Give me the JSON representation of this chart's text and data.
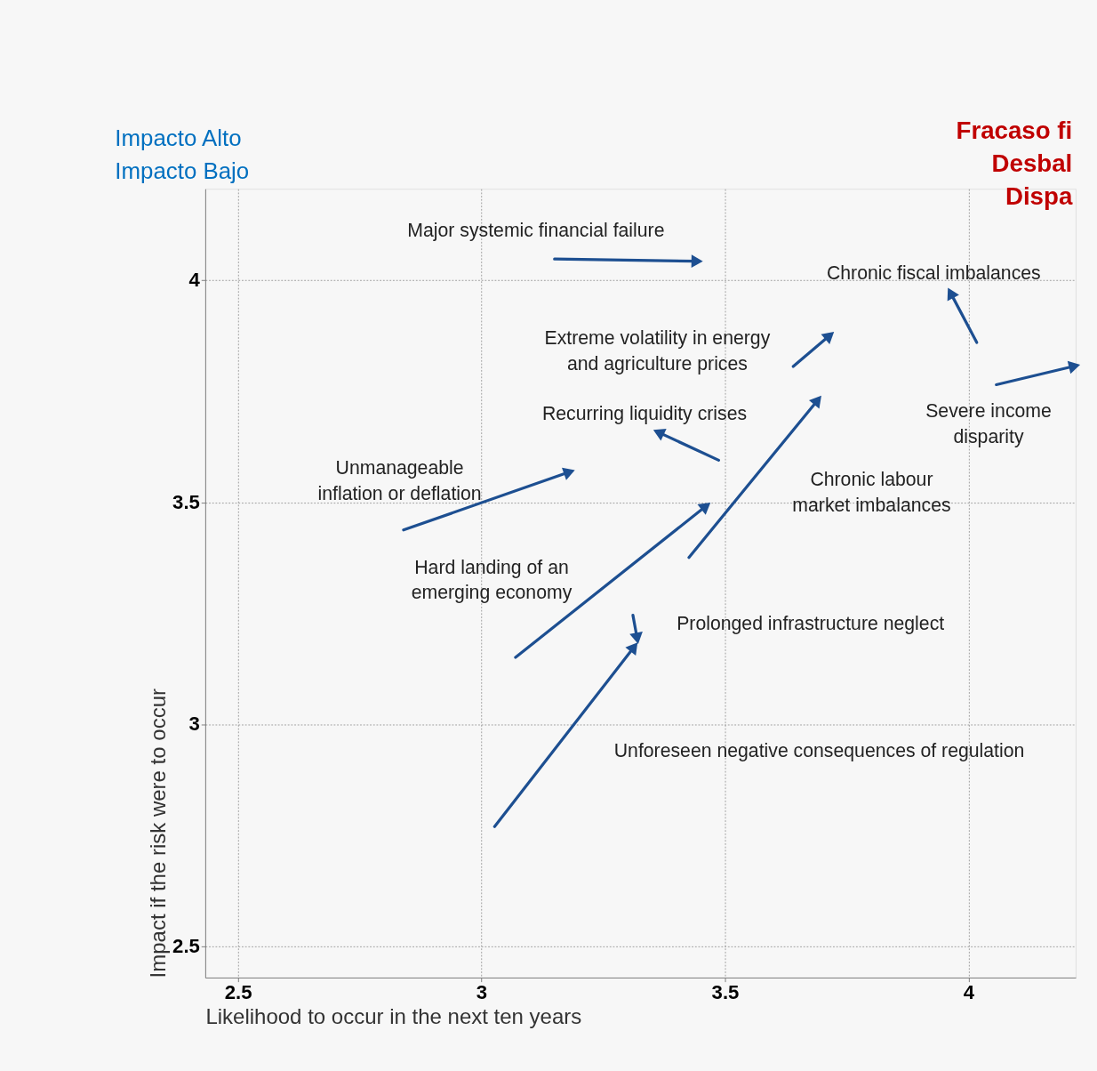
{
  "chart_data": {
    "type": "line",
    "xlabel": "Likelihood to occur in the next ten years",
    "ylabel": "Impact if the risk were to occur",
    "xlim": [
      2.433,
      4.22
    ],
    "ylim": [
      2.43,
      4.206
    ],
    "xticks": [
      2.5,
      3,
      3.5,
      4
    ],
    "yticks": [
      2.5,
      3,
      3.5,
      4
    ],
    "grid": true,
    "series": [
      {
        "color": "#1d4f91",
        "x": [
          3.15,
          3.439
        ],
        "values": [
          4.048,
          4.043
        ]
      },
      {
        "color": "#1d4f91",
        "x": [
          3.64,
          3.712
        ],
        "values": [
          3.806,
          3.873
        ]
      },
      {
        "color": "#1d4f91",
        "x": [
          4.017,
          3.965
        ],
        "values": [
          3.86,
          3.968
        ]
      },
      {
        "color": "#1d4f91",
        "x": [
          4.057,
          4.214
        ],
        "values": [
          3.765,
          3.806
        ]
      },
      {
        "color": "#1d4f91",
        "x": [
          3.487,
          3.367
        ],
        "values": [
          3.595,
          3.656
        ]
      },
      {
        "name": "Chronic labour\nmarket imbalances",
        "color": "#1d4f91",
        "x": [
          3.426,
          3.688
        ],
        "values": [
          3.376,
          3.727
        ]
      },
      {
        "color": "#1d4f91",
        "x": [
          2.84,
          3.177
        ],
        "values": [
          3.438,
          3.567
        ]
      },
      {
        "color": "#1d4f91",
        "x": [
          3.07,
          3.458
        ],
        "values": [
          3.151,
          3.489
        ]
      },
      {
        "color": "#1d4f91",
        "x": [
          3.311,
          3.319
        ],
        "values": [
          3.246,
          3.198
        ]
      },
      {
        "name": "Unforeseen negative consequences of regulation",
        "color": "#1d4f91",
        "x": [
          3.027,
          3.311
        ],
        "values": [
          2.77,
          3.171
        ]
      }
    ],
    "annotations": [
      {
        "text": "Major systemic financial failure",
        "x": 3.15,
        "y": 4.048
      },
      {
        "text": "Extreme volatility in energy\nand agriculture prices",
        "x": 3.64,
        "y": 3.806
      },
      {
        "text": "Chronic fiscal imbalances",
        "x": 3.965,
        "y": 3.968
      },
      {
        "text": "Severe income\ndisparity",
        "x": 4.057,
        "y": 3.765
      },
      {
        "text": "Recurring liquidity crises",
        "x": 3.487,
        "y": 3.595
      },
      {
        "text": "Unmanageable\ninflation or deflation",
        "x": 2.84,
        "y": 3.438
      },
      {
        "text": "Hard landing of an\nemerging economy",
        "x": 3.07,
        "y": 3.151
      },
      {
        "text": "Prolonged infrastructure neglect",
        "x": 3.311,
        "y": 3.246
      },
      "Impacto Alto",
      "Impacto Bajo",
      "Fracaso fi",
      "Desbal",
      "Dispa"
    ]
  }
}
